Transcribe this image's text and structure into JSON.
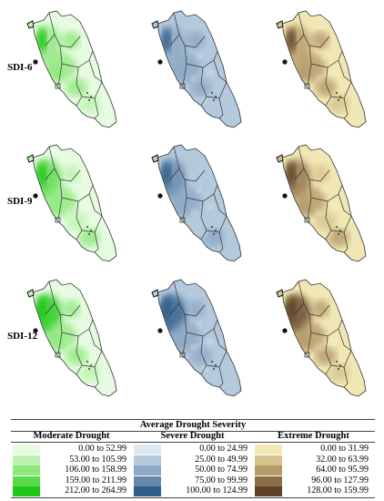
{
  "row_labels": [
    "SDI-6",
    "SDI-9",
    "SDI-12"
  ],
  "legend": {
    "title": "Average Drought Severity",
    "categories": [
      {
        "name": "Moderate Drought",
        "icon": "green-swatch",
        "colors": [
          "#e6fbe0",
          "#bdf3b0",
          "#8fe87d",
          "#58d94a",
          "#1fc818"
        ],
        "ranges": [
          "0.00 to 52.99",
          "53.00 to 105.99",
          "106.00 to 158.99",
          "159.00 to 211.99",
          "212.00 to 264.99"
        ]
      },
      {
        "name": "Severe Drought",
        "icon": "blue-swatch",
        "colors": [
          "#dde8f0",
          "#b4c9dc",
          "#8ea9c4",
          "#6688ab",
          "#2f5e8a"
        ],
        "ranges": [
          "0.00 to 24.99",
          "25.00 to 49.99",
          "50.00 to 74.99",
          "75.00 to 99.99",
          "100.00 to 124.99"
        ]
      },
      {
        "name": "Extreme Drought",
        "icon": "brown-swatch",
        "colors": [
          "#f1e7b4",
          "#d7c38e",
          "#b59a6a",
          "#8c6f48",
          "#5f4328"
        ],
        "ranges": [
          "0.00 to 31.99",
          "32.00 to 63.99",
          "64.00 to 95.99",
          "96.00 to 127.99",
          "128.00 to 159.99"
        ]
      }
    ]
  },
  "map_style": {
    "boundary_color": "#333333",
    "island_color": "#111111"
  }
}
